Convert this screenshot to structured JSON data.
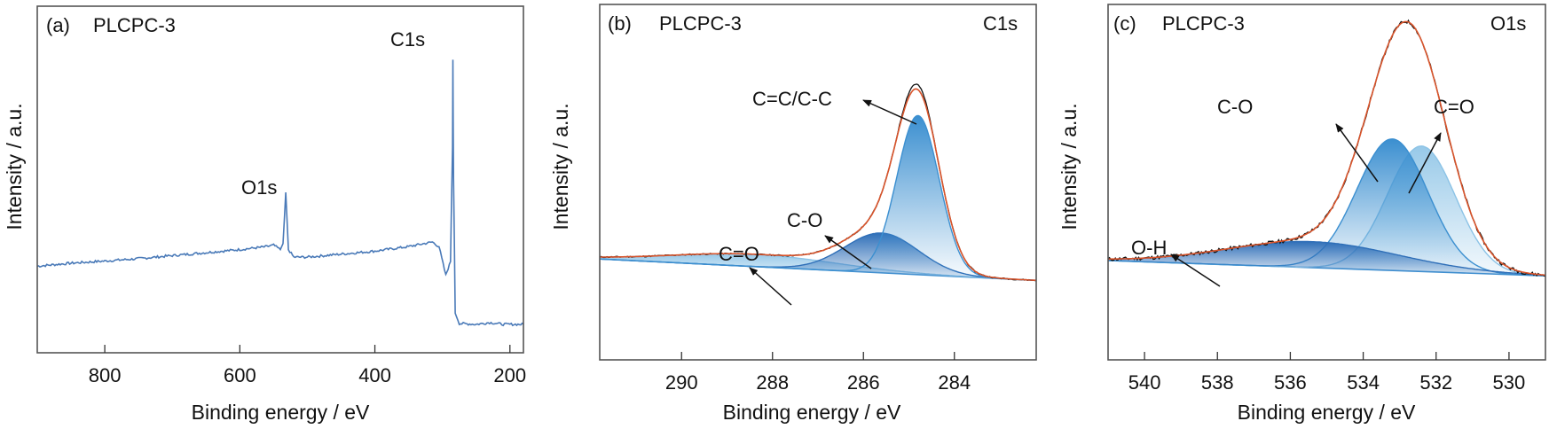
{
  "figure": {
    "colors": {
      "survey": "#4a7ab8",
      "raw": "#111111",
      "envelope": "#d9542b",
      "component_dark": "#2f6fb8",
      "component_mid": "#3b8fd0",
      "component_light": "#8cc3e6",
      "baseline": "#3c8ed0"
    }
  },
  "chart_data": [
    {
      "type": "line",
      "panel": "(a)",
      "sample": "PLCPC-3",
      "title": "",
      "xlabel": "Binding energy / eV",
      "ylabel": "Intensity / a.u.",
      "xlim": [
        900,
        180
      ],
      "x_reversed": true,
      "ylim": [
        0,
        100
      ],
      "xticks": [
        800,
        600,
        400,
        200
      ],
      "yticks": [],
      "grid": false,
      "series": [
        {
          "name": "survey spectrum",
          "points": [
            [
              900,
              20.5
            ],
            [
              850,
              21.5
            ],
            [
              800,
              22.2
            ],
            [
              750,
              23
            ],
            [
              700,
              24
            ],
            [
              650,
              25
            ],
            [
              600,
              26
            ],
            [
              560,
              27
            ],
            [
              550,
              27.5
            ],
            [
              540,
              26
            ],
            [
              536,
              28
            ],
            [
              532,
              45
            ],
            [
              528,
              26
            ],
            [
              520,
              23.5
            ],
            [
              500,
              23.5
            ],
            [
              450,
              24.5
            ],
            [
              400,
              25.5
            ],
            [
              350,
              27
            ],
            [
              315,
              28.5
            ],
            [
              305,
              27
            ],
            [
              295,
              17.5
            ],
            [
              288,
              22
            ],
            [
              285,
              60
            ],
            [
              284.5,
              89
            ],
            [
              283.5,
              50
            ],
            [
              281,
              5
            ],
            [
              275,
              1.5
            ],
            [
              250,
              1.2
            ],
            [
              230,
              1.8
            ],
            [
              210,
              1.2
            ],
            [
              180,
              1.2
            ]
          ]
        }
      ],
      "annotations": [
        {
          "text": "O1s",
          "x": 532,
          "y": 45
        },
        {
          "text": "C1s",
          "x": 284.5,
          "y": 89
        }
      ]
    },
    {
      "type": "area",
      "panel": "(b)",
      "sample": "PLCPC-3",
      "region": "C1s",
      "xlabel": "Binding energy / eV",
      "ylabel": "Intensity / a.u.",
      "xlim": [
        291.8,
        282.2
      ],
      "x_reversed": true,
      "ylim": [
        0,
        100
      ],
      "xticks": [
        290,
        288,
        286,
        284
      ],
      "yticks": [],
      "grid": false,
      "baseline": {
        "x": [
          291.8,
          282.2
        ],
        "y": [
          24,
          17
        ]
      },
      "components": [
        {
          "name": "C=C/C-C",
          "center": 284.8,
          "height": 52,
          "fwhm": 1.1
        },
        {
          "name": "C-O",
          "center": 285.6,
          "height": 13,
          "fwhm": 1.9
        },
        {
          "name": "C=O",
          "center": 288.4,
          "height": 4,
          "fwhm": 4.2
        }
      ],
      "series": [
        {
          "name": "raw data",
          "peak": {
            "x": 284.8,
            "y": 89
          }
        },
        {
          "name": "fit envelope",
          "peak": {
            "x": 284.8,
            "y": 87
          }
        }
      ],
      "annotations": [
        {
          "text": "C=C/C-C",
          "target": "C=C/C-C"
        },
        {
          "text": "C-O",
          "target": "C-O"
        },
        {
          "text": "C=O",
          "target": "C=O"
        }
      ]
    },
    {
      "type": "area",
      "panel": "(c)",
      "sample": "PLCPC-3",
      "region": "O1s",
      "xlabel": "Binding energy / eV",
      "ylabel": "Intensity / a.u.",
      "xlim": [
        541,
        529
      ],
      "x_reversed": true,
      "ylim": [
        0,
        100
      ],
      "xticks": [
        540,
        538,
        536,
        534,
        532,
        530
      ],
      "yticks": [],
      "grid": false,
      "baseline": {
        "x": [
          541,
          529
        ],
        "y": [
          23.5,
          18.5
        ]
      },
      "components": [
        {
          "name": "C-O",
          "center": 533.2,
          "height": 43,
          "fwhm": 2.3
        },
        {
          "name": "C=O",
          "center": 532.4,
          "height": 41,
          "fwhm": 2.2
        },
        {
          "name": "O-H",
          "center": 535.4,
          "height": 8.5,
          "fwhm": 5.5
        }
      ],
      "series": [
        {
          "name": "raw data",
          "peak": {
            "x": 532.8,
            "y": 93
          }
        },
        {
          "name": "fit envelope",
          "peak": {
            "x": 532.8,
            "y": 93
          }
        }
      ],
      "annotations": [
        {
          "text": "C-O",
          "target": "C-O"
        },
        {
          "text": "C=O",
          "target": "C=O"
        },
        {
          "text": "O-H",
          "target": "O-H"
        }
      ]
    }
  ],
  "panels": [
    {
      "label": "(a)",
      "sample": "PLCPC-3",
      "region": "",
      "xlabel": "Binding energy / eV",
      "ylabel": "Intensity / a.u.",
      "ticklabels": [
        "800",
        "600",
        "400",
        "200"
      ],
      "annotations": [
        "O1s",
        "C1s"
      ]
    },
    {
      "label": "(b)",
      "sample": "PLCPC-3",
      "region": "C1s",
      "xlabel": "Binding energy / eV",
      "ylabel": "Intensity / a.u.",
      "ticklabels": [
        "290",
        "288",
        "286",
        "284"
      ],
      "annotations": [
        "C=C/C-C",
        "C-O",
        "C=O"
      ]
    },
    {
      "label": "(c)",
      "sample": "PLCPC-3",
      "region": "O1s",
      "xlabel": "Binding energy / eV",
      "ylabel": "Intensity / a.u.",
      "ticklabels": [
        "540",
        "538",
        "536",
        "534",
        "532",
        "530"
      ],
      "annotations": [
        "C-O",
        "C=O",
        "O-H"
      ]
    }
  ]
}
